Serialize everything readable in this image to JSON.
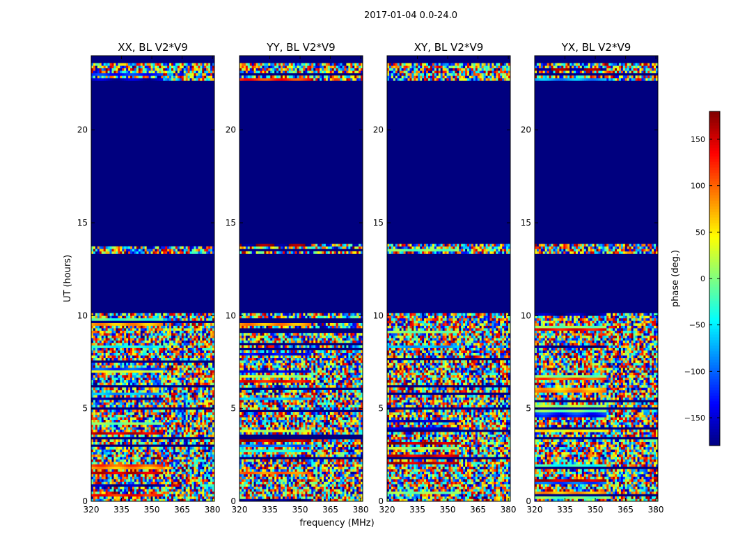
{
  "figure": {
    "suptitle": "2017-01-04 0.0-24.0"
  },
  "chart_data": {
    "type": "heatmap",
    "xlabel": "frequency (MHz)",
    "ylabel": "UT (hours)",
    "xlim": [
      320,
      381
    ],
    "ylim": [
      0,
      24
    ],
    "x_ticks": [
      320,
      335,
      350,
      365,
      380
    ],
    "y_ticks": [
      0,
      5,
      10,
      15,
      20
    ],
    "panels": [
      {
        "title": "XX, BL V2*V9",
        "polarization": "XX"
      },
      {
        "title": "YY, BL V2*V9",
        "polarization": "YY"
      },
      {
        "title": "XY, BL V2*V9",
        "polarization": "XY"
      },
      {
        "title": "YX, BL V2*V9",
        "polarization": "YX"
      }
    ],
    "flagged_ut_ranges_hours": [
      [
        10.2,
        13.3
      ],
      [
        13.9,
        22.6
      ],
      [
        23.6,
        24.0
      ]
    ],
    "colorbar": {
      "label": "phase (deg.)",
      "range": [
        -180,
        180
      ],
      "ticks": [
        -150,
        -100,
        -50,
        0,
        50,
        100,
        150
      ],
      "tick_labels": [
        "−150",
        "−100",
        "−50",
        "0",
        "50",
        "100",
        "150"
      ],
      "colormap": "jet"
    }
  },
  "colors": {
    "flagged": "#00007f"
  }
}
